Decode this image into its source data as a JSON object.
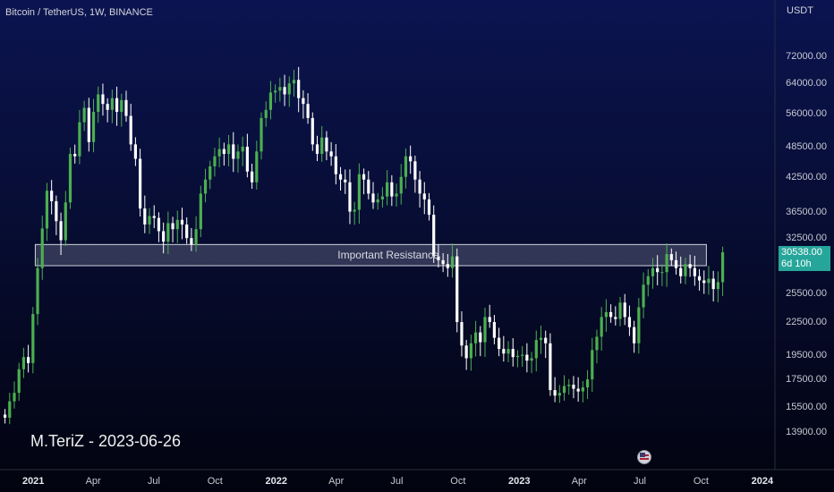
{
  "header": {
    "title": "Bitcoin / TetherUS, 1W, BINANCE",
    "currency": "USDT"
  },
  "price_badge": {
    "price": "30538.00",
    "countdown": "6d 10h"
  },
  "watermark": "M.TeriZ - 2023-06-26",
  "colors": {
    "up": "#26a69a",
    "up_candle": "#4caf50",
    "down_candle": "#ffffff",
    "zone_fill": "rgba(160,165,190,0.28)",
    "zone_border": "#d0d3dc"
  },
  "chart_data": {
    "type": "candlestick",
    "title": "Bitcoin / TetherUS, 1W, BINANCE",
    "y_scale": "log",
    "ylim": [
      13000,
      82000
    ],
    "y_ticks": [
      {
        "value": 72000,
        "label": "72000.00"
      },
      {
        "value": 64000,
        "label": "64000.00"
      },
      {
        "value": 56000,
        "label": "56000.00"
      },
      {
        "value": 48500,
        "label": "48500.00"
      },
      {
        "value": 42500,
        "label": "42500.00"
      },
      {
        "value": 36500,
        "label": "36500.00"
      },
      {
        "value": 32500,
        "label": "32500.00"
      },
      {
        "value": 25500,
        "label": "25500.00"
      },
      {
        "value": 22500,
        "label": "22500.00"
      },
      {
        "value": 19500,
        "label": "19500.00"
      },
      {
        "value": 17500,
        "label": "17500.00"
      },
      {
        "value": 15500,
        "label": "15500.00"
      },
      {
        "value": 13900,
        "label": "13900.00"
      }
    ],
    "x_ticks": [
      {
        "label": "2021",
        "date": "2021-01-01",
        "bold": true
      },
      {
        "label": "Apr",
        "date": "2021-04-01"
      },
      {
        "label": "Jul",
        "date": "2021-07-01"
      },
      {
        "label": "Oct",
        "date": "2021-10-01"
      },
      {
        "label": "2022",
        "date": "2022-01-01",
        "bold": true
      },
      {
        "label": "Apr",
        "date": "2022-04-01"
      },
      {
        "label": "Jul",
        "date": "2022-07-01"
      },
      {
        "label": "Oct",
        "date": "2022-10-01"
      },
      {
        "label": "2023",
        "date": "2023-01-01",
        "bold": true
      },
      {
        "label": "Apr",
        "date": "2023-04-01"
      },
      {
        "label": "Jul",
        "date": "2023-07-01"
      },
      {
        "label": "Oct",
        "date": "2023-10-01"
      },
      {
        "label": "2024",
        "date": "2024-01-01",
        "bold": true
      }
    ],
    "xlim": [
      "2020-11-12",
      "2024-01-20"
    ],
    "zone": {
      "label": "Important Resistance",
      "start": "2021-01-04",
      "end": "2023-10-09",
      "low": 28800,
      "high": 31600
    },
    "weekly_closes": [
      14800,
      15900,
      16500,
      18300,
      19300,
      18800,
      23300,
      28500,
      33900,
      40000,
      38200,
      35000,
      32200,
      38000,
      47000,
      46500,
      54000,
      57500,
      49500,
      56500,
      61000,
      58500,
      57000,
      60000,
      56500,
      59500,
      55500,
      49000,
      46000,
      37000,
      34500,
      35800,
      35500,
      33500,
      32000,
      34700,
      33800,
      35200,
      34500,
      32500,
      31600,
      33800,
      39500,
      42000,
      44500,
      46500,
      48000,
      47000,
      49000,
      46000,
      47500,
      48500,
      43500,
      41500,
      47500,
      55000,
      57000,
      61500,
      62000,
      63000,
      61000,
      64000,
      65000,
      60000,
      58500,
      55000,
      49000,
      47000,
      50500,
      47500,
      46500,
      43000,
      42000,
      41500,
      36500,
      36800,
      43000,
      42000,
      39500,
      38000,
      38500,
      39000,
      41500,
      39000,
      39500,
      42500,
      46500,
      45500,
      42000,
      39500,
      38500,
      36000,
      30000,
      29500,
      29000,
      28500,
      30000,
      22500,
      20300,
      19200,
      20500,
      21500,
      20600,
      23000,
      22500,
      21000,
      20000,
      19600,
      20000,
      19300,
      19400,
      19500,
      19000,
      19200,
      20800,
      21000,
      20500,
      16700,
      16300,
      16500,
      17000,
      17100,
      16800,
      16600,
      16900,
      17500,
      19900,
      21100,
      23000,
      23500,
      23000,
      22800,
      24500,
      23000,
      22000,
      20500,
      24000,
      26500,
      27500,
      28500,
      28000,
      28000,
      30300,
      29500,
      28500,
      27500,
      29000,
      28500,
      27500,
      27000,
      26700,
      27200,
      26000,
      26800,
      30538
    ]
  }
}
